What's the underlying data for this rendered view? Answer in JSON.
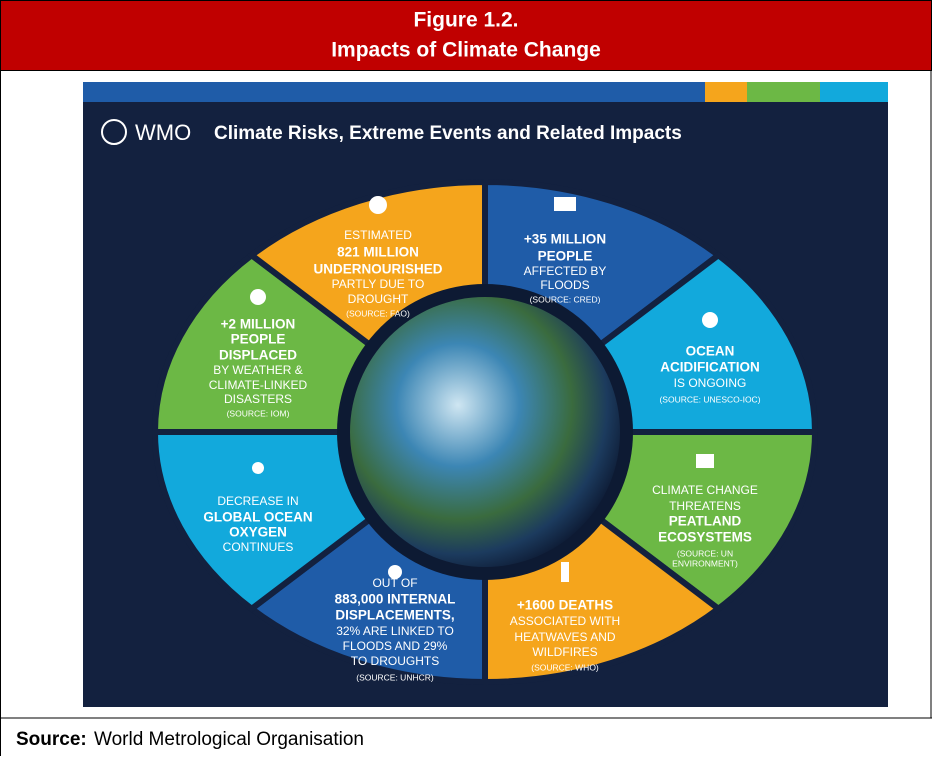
{
  "header": {
    "label": "Figure 1.2.",
    "title": "Impacts of Climate Change"
  },
  "infographic": {
    "brand": "WMO",
    "title": "Climate Risks, Extreme Events and Related Impacts",
    "segments": [
      {
        "lines": [
          "ESTIMATED",
          "821 MILLION",
          "UNDERNOURISHED",
          "PARTLY DUE TO",
          "DROUGHT",
          "(SOURCE: FAO)"
        ]
      },
      {
        "lines": [
          "+35 MILLION",
          "PEOPLE",
          "AFFECTED BY",
          "FLOODS",
          "(SOURCE: CRED)"
        ]
      },
      {
        "lines": [
          "OCEAN",
          "ACIDIFICATION",
          "IS ONGOING",
          "(SOURCE: UNESCO-IOC)"
        ]
      },
      {
        "lines": [
          "CLIMATE CHANGE",
          "THREATENS",
          "PEATLAND",
          "ECOSYSTEMS",
          "(SOURCE: UN",
          "ENVIRONMENT)"
        ]
      },
      {
        "lines": [
          "+1600 DEATHS",
          "ASSOCIATED WITH",
          "HEATWAVES AND",
          "WILDFIRES",
          "(SOURCE: WHO)"
        ]
      },
      {
        "lines": [
          "OUT OF",
          "883,000 INTERNAL",
          "DISPLACEMENTS,",
          "32% ARE LINKED TO",
          "FLOODS AND 29%",
          "TO DROUGHTS",
          "(SOURCE: UNHCR)"
        ]
      },
      {
        "lines": [
          "DECREASE IN",
          "GLOBAL OCEAN",
          "OXYGEN",
          "CONTINUES"
        ]
      },
      {
        "lines": [
          "+2 MILLION",
          "PEOPLE",
          "DISPLACED",
          "BY WEATHER &",
          "CLIMATE-LINKED",
          "DISASTERS",
          "(SOURCE: IOM)"
        ]
      }
    ]
  },
  "source": {
    "label": "Source:",
    "text": "World Metrological Organisation"
  }
}
